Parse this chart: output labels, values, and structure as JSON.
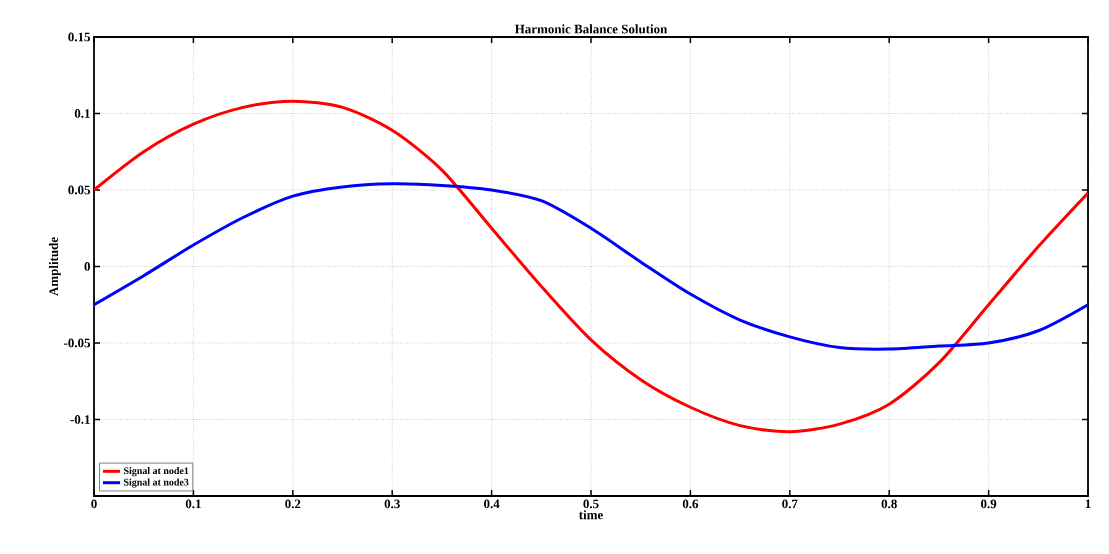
{
  "chart_data": {
    "type": "line",
    "title": "Harmonic Balance Solution",
    "xlabel": "time",
    "ylabel": "Amplitude",
    "x": [
      0,
      0.05,
      0.1,
      0.15,
      0.2,
      0.25,
      0.3,
      0.35,
      0.4,
      0.45,
      0.5,
      0.55,
      0.6,
      0.65,
      0.7,
      0.75,
      0.8,
      0.85,
      0.9,
      0.95,
      1
    ],
    "series": [
      {
        "name": "Signal at node1",
        "color": "#ff0000",
        "values": [
          0.05,
          0.075,
          0.093,
          0.104,
          0.108,
          0.104,
          0.089,
          0.063,
          0.025,
          -0.013,
          -0.048,
          -0.074,
          -0.092,
          -0.104,
          -0.108,
          -0.103,
          -0.09,
          -0.063,
          -0.025,
          0.013,
          0.048
        ]
      },
      {
        "name": "Signal at node3",
        "color": "#0000ff",
        "values": [
          -0.025,
          -0.006,
          0.014,
          0.032,
          0.046,
          0.052,
          0.054,
          0.053,
          0.05,
          0.043,
          0.025,
          0.003,
          -0.018,
          -0.035,
          -0.046,
          -0.053,
          -0.054,
          -0.052,
          -0.05,
          -0.042,
          -0.025
        ]
      }
    ],
    "xlim": [
      0,
      1
    ],
    "ylim": [
      -0.15,
      0.15
    ],
    "xticks": [
      0,
      0.1,
      0.2,
      0.3,
      0.4,
      0.5,
      0.6,
      0.7,
      0.8,
      0.9,
      1
    ],
    "yticks": [
      -0.1,
      -0.05,
      0,
      0.05,
      0.1,
      0.15
    ],
    "grid": true,
    "legend": "bottom left",
    "marker": "none",
    "line_style": "solid"
  }
}
